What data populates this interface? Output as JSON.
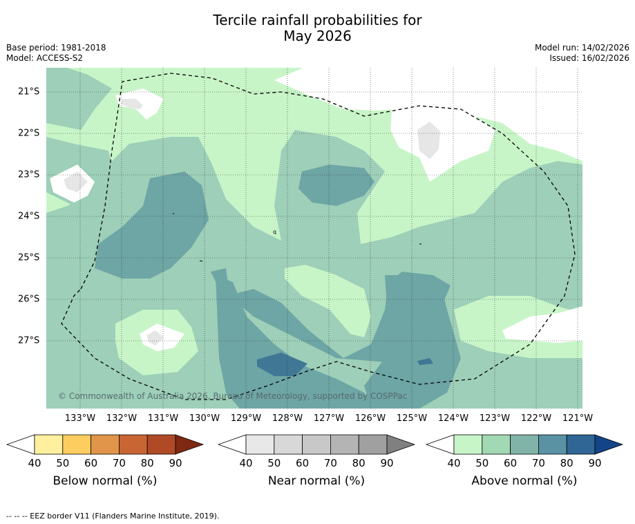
{
  "title": {
    "line1": "Tercile rainfall probabilities for",
    "line2": "May 2026"
  },
  "meta": {
    "base_period": "Base period: 1981-2018",
    "model": "Model: ACCESS-S2",
    "model_run": "Model run: 14/02/2026",
    "issued": "Issued: 16/02/2026"
  },
  "map": {
    "lat_labels": [
      "21°S",
      "22°S",
      "23°S",
      "24°S",
      "25°S",
      "26°S",
      "27°S"
    ],
    "lon_labels": [
      "133°W",
      "132°W",
      "131°W",
      "130°W",
      "129°W",
      "128°W",
      "127°W",
      "126°W",
      "125°W",
      "124°W",
      "123°W",
      "122°W",
      "121°W"
    ],
    "copyright": "© Commonwealth of Australia 2026, Bureau of Meteorology, supported by COSPPac",
    "stray_label": "q",
    "colors": {
      "above_40": "#c8f5c8",
      "above_50": "#9ecfb8",
      "above_60": "#6ea5a5",
      "above_70": "#3f7794",
      "near_40": "#e6e6e6",
      "white": "#ffffff"
    }
  },
  "colorbars": {
    "below": {
      "title": "Below normal (%)",
      "ticks": [
        "40",
        "50",
        "60",
        "70",
        "80",
        "90"
      ],
      "colors": [
        "#fff0a0",
        "#fdcd60",
        "#e0954a",
        "#c96532",
        "#b04a26",
        "#7f2812"
      ]
    },
    "near": {
      "title": "Near normal (%)",
      "ticks": [
        "40",
        "50",
        "60",
        "70",
        "80",
        "90"
      ],
      "colors": [
        "#e8e8e8",
        "#d8d8d8",
        "#c8c8c8",
        "#b4b4b4",
        "#a0a0a0",
        "#808080"
      ]
    },
    "above": {
      "title": "Above normal (%)",
      "ticks": [
        "40",
        "50",
        "60",
        "70",
        "80",
        "90"
      ],
      "colors": [
        "#c8f5c8",
        "#a2d8b4",
        "#80b4a8",
        "#5a92a4",
        "#2f6696",
        "#144488"
      ]
    }
  },
  "footer": "--  --  -- EEZ border V11 (Flanders Marine Institute, 2019)."
}
